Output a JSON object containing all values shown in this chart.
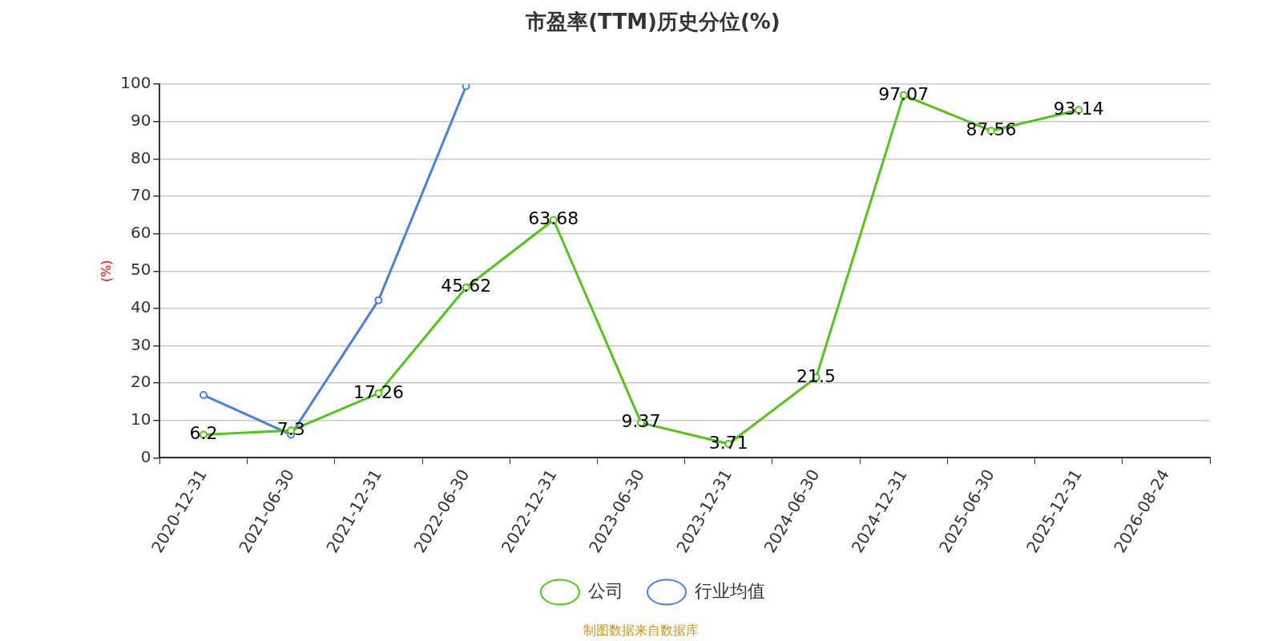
{
  "chart_data": {
    "type": "line",
    "title": "市盈率(TTM)历史分位(%)",
    "ylabel": "(%)",
    "categories": [
      "2020-12-31",
      "2021-06-30",
      "2021-12-31",
      "2022-06-30",
      "2022-12-31",
      "2023-06-30",
      "2023-12-31",
      "2024-06-30",
      "2024-12-31",
      "2025-06-30",
      "2025-12-31",
      "2026-08-24"
    ],
    "series": [
      {
        "name": "公司",
        "color": "#52c41a",
        "values": [
          6.2,
          7.3,
          17.26,
          45.62,
          63.68,
          9.37,
          3.71,
          21.5,
          97.07,
          87.56,
          93.14,
          null
        ],
        "value_labels": [
          "6.2",
          "7.3",
          "17.26",
          "45.62",
          "63.68",
          "9.37",
          "3.71",
          "21.5",
          "97.07",
          "87.56",
          "93.14",
          null
        ]
      },
      {
        "name": "行业均值",
        "color": "#4a7ee0",
        "values": [
          16.8,
          6.2,
          42.2,
          99.5,
          null,
          null,
          null,
          null,
          null,
          null,
          null,
          null
        ]
      }
    ],
    "ylim": [
      0,
      100
    ],
    "yticks": [
      0,
      10,
      20,
      30,
      40,
      50,
      60,
      70,
      80,
      90,
      100
    ],
    "grid": "y",
    "legend": "bottom",
    "marker": "circle",
    "line_style": "solid",
    "annotations": [
      "制图数据来自数据库"
    ]
  }
}
